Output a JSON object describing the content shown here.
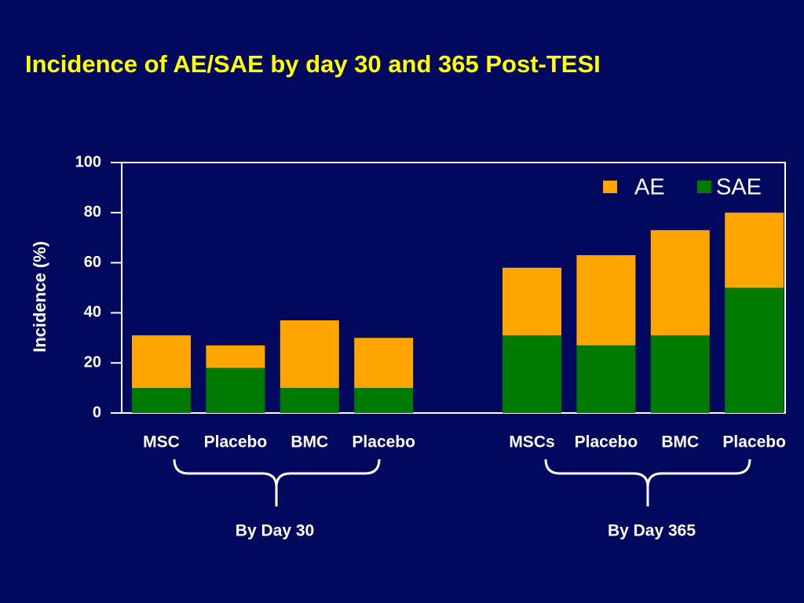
{
  "chart_data": {
    "type": "bar",
    "stacked": true,
    "title": "Incidence of AE/SAE by day 30 and 365 Post-TESI",
    "ylabel": "Incidence (%)",
    "categories": [
      "MSC",
      "Placebo",
      "BMC",
      "Placebo",
      null,
      "MSCs",
      "Placebo",
      "BMC",
      "Placebo"
    ],
    "series": [
      {
        "name": "AE",
        "color": "#ffa500",
        "values": [
          21,
          9,
          27,
          20,
          null,
          27,
          36,
          42,
          30
        ]
      },
      {
        "name": "SAE",
        "color": "#007a00",
        "values": [
          10,
          18,
          10,
          10,
          null,
          31,
          27,
          31,
          50
        ]
      }
    ],
    "ylim": [
      0,
      100
    ],
    "yticks": [
      0,
      20,
      40,
      60,
      80,
      100
    ],
    "legend": "upper right",
    "annotations": [
      "By Day 30",
      "By Day 365"
    ]
  }
}
